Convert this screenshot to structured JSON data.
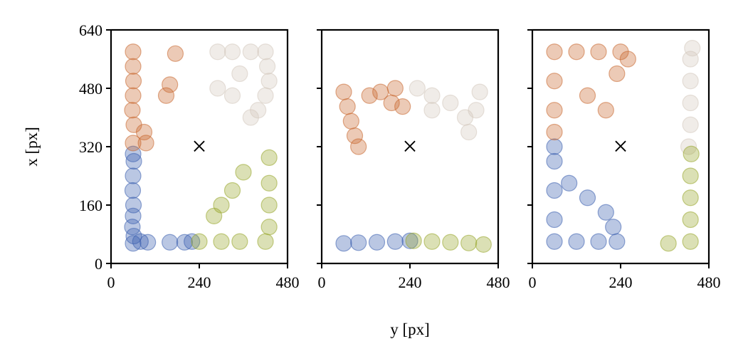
{
  "chart_data": {
    "type": "scatter",
    "xlabel": "y [px]",
    "ylabel": "x [px]",
    "xlim": [
      0,
      480
    ],
    "ylim": [
      0,
      640
    ],
    "xticks": [
      "0",
      "240",
      "480"
    ],
    "yticks": [
      "0",
      "160",
      "320",
      "480",
      "640"
    ],
    "marker_label": "×",
    "marker": [
      240,
      320
    ],
    "colors": {
      "blue": "#3a5fae",
      "orange": "#c8672f",
      "beige": "#d3c9bd",
      "green": "#98a52a"
    },
    "panels": [
      {
        "panel": 1,
        "marker": [
          240,
          320
        ],
        "series": [
          {
            "color": "blue",
            "points": [
              [
                60,
                55
              ],
              [
                62,
                75
              ],
              [
                58,
                100
              ],
              [
                60,
                130
              ],
              [
                61,
                160
              ],
              [
                59,
                200
              ],
              [
                60,
                240
              ],
              [
                62,
                280
              ],
              [
                60,
                300
              ],
              [
                80,
                60
              ],
              [
                100,
                58
              ],
              [
                160,
                58
              ],
              [
                200,
                58
              ],
              [
                220,
                60
              ]
            ]
          },
          {
            "color": "orange",
            "points": [
              [
                60,
                330
              ],
              [
                62,
                380
              ],
              [
                58,
                420
              ],
              [
                60,
                460
              ],
              [
                61,
                500
              ],
              [
                60,
                540
              ],
              [
                60,
                580
              ],
              [
                90,
                360
              ],
              [
                95,
                330
              ],
              [
                150,
                460
              ],
              [
                160,
                490
              ],
              [
                175,
                575
              ]
            ]
          },
          {
            "color": "beige",
            "points": [
              [
                290,
                580
              ],
              [
                330,
                580
              ],
              [
                380,
                580
              ],
              [
                420,
                580
              ],
              [
                425,
                540
              ],
              [
                430,
                500
              ],
              [
                420,
                460
              ],
              [
                400,
                420
              ],
              [
                380,
                400
              ],
              [
                330,
                460
              ],
              [
                290,
                480
              ],
              [
                350,
                520
              ]
            ]
          },
          {
            "color": "green",
            "points": [
              [
                240,
                60
              ],
              [
                300,
                60
              ],
              [
                350,
                60
              ],
              [
                420,
                60
              ],
              [
                430,
                100
              ],
              [
                430,
                160
              ],
              [
                430,
                220
              ],
              [
                430,
                290
              ],
              [
                300,
                160
              ],
              [
                330,
                200
              ],
              [
                360,
                250
              ],
              [
                280,
                130
              ]
            ]
          }
        ]
      },
      {
        "panel": 2,
        "marker": [
          240,
          320
        ],
        "series": [
          {
            "color": "blue",
            "points": [
              [
                60,
                55
              ],
              [
                100,
                57
              ],
              [
                150,
                58
              ],
              [
                200,
                60
              ],
              [
                240,
                62
              ]
            ]
          },
          {
            "color": "orange",
            "points": [
              [
                60,
                470
              ],
              [
                70,
                430
              ],
              [
                80,
                390
              ],
              [
                90,
                350
              ],
              [
                100,
                320
              ],
              [
                130,
                460
              ],
              [
                160,
                470
              ],
              [
                200,
                480
              ],
              [
                220,
                430
              ],
              [
                190,
                440
              ]
            ]
          },
          {
            "color": "beige",
            "points": [
              [
                260,
                480
              ],
              [
                300,
                460
              ],
              [
                350,
                440
              ],
              [
                390,
                400
              ],
              [
                400,
                360
              ],
              [
                420,
                420
              ],
              [
                430,
                470
              ],
              [
                300,
                420
              ]
            ]
          },
          {
            "color": "green",
            "points": [
              [
                250,
                62
              ],
              [
                300,
                60
              ],
              [
                350,
                58
              ],
              [
                400,
                56
              ],
              [
                440,
                52
              ]
            ]
          }
        ]
      },
      {
        "panel": 3,
        "marker": [
          240,
          320
        ],
        "series": [
          {
            "color": "blue",
            "points": [
              [
                60,
                60
              ],
              [
                60,
                120
              ],
              [
                60,
                200
              ],
              [
                60,
                280
              ],
              [
                60,
                320
              ],
              [
                120,
                60
              ],
              [
                180,
                60
              ],
              [
                230,
                60
              ],
              [
                100,
                220
              ],
              [
                150,
                180
              ],
              [
                200,
                140
              ],
              [
                220,
                100
              ]
            ]
          },
          {
            "color": "orange",
            "points": [
              [
                60,
                580
              ],
              [
                120,
                580
              ],
              [
                180,
                580
              ],
              [
                240,
                580
              ],
              [
                260,
                560
              ],
              [
                60,
                500
              ],
              [
                60,
                420
              ],
              [
                60,
                360
              ],
              [
                150,
                460
              ],
              [
                200,
                420
              ],
              [
                230,
                520
              ]
            ]
          },
          {
            "color": "beige",
            "points": [
              [
                430,
                560
              ],
              [
                430,
                500
              ],
              [
                430,
                440
              ],
              [
                430,
                380
              ],
              [
                425,
                320
              ],
              [
                435,
                590
              ]
            ]
          },
          {
            "color": "green",
            "points": [
              [
                430,
                60
              ],
              [
                430,
                120
              ],
              [
                430,
                180
              ],
              [
                430,
                240
              ],
              [
                432,
                300
              ],
              [
                370,
                55
              ]
            ]
          }
        ]
      }
    ]
  }
}
